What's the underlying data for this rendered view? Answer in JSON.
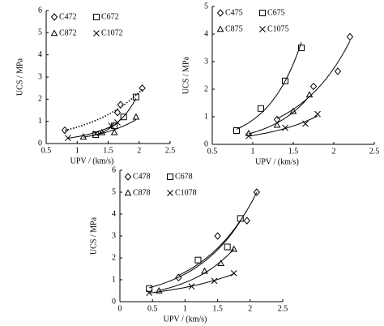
{
  "chart_data": [
    {
      "type": "scatter",
      "x_label": "UPV / (km/s)",
      "y_label": "UCS / MPa",
      "xlim": [
        0.5,
        2.5
      ],
      "xticks": [
        0.5,
        1,
        1.5,
        2,
        2.5
      ],
      "ylim": [
        0,
        6
      ],
      "yticks": [
        0,
        1,
        2,
        3,
        4,
        5,
        6
      ],
      "trendline": "exponential",
      "series": [
        {
          "name": "C472",
          "marker": "diamond",
          "color": "#000000",
          "trend_dash": "dotted",
          "x": [
            0.8,
            1.65,
            1.7,
            2.05
          ],
          "values": [
            0.6,
            1.4,
            1.75,
            2.5
          ]
        },
        {
          "name": "C672",
          "marker": "square",
          "color": "#000000",
          "trend_dash": "solid",
          "x": [
            1.3,
            1.6,
            1.75,
            1.95
          ],
          "values": [
            0.4,
            0.8,
            1.2,
            2.1
          ]
        },
        {
          "name": "C872",
          "marker": "triangle",
          "color": "#000000",
          "trend_dash": "solid",
          "x": [
            1.1,
            1.4,
            1.6,
            1.95
          ],
          "values": [
            0.3,
            0.5,
            0.5,
            1.2
          ]
        },
        {
          "name": "C1072",
          "marker": "x",
          "color": "#000000",
          "trend_dash": "solid",
          "x": [
            0.85,
            1.3,
            1.55,
            1.65
          ],
          "values": [
            0.25,
            0.45,
            0.8,
            0.95
          ]
        }
      ]
    },
    {
      "type": "scatter",
      "x_label": "UPV / (km/s)",
      "y_label": "UCS / MPa",
      "xlim": [
        0.5,
        2.5
      ],
      "xticks": [
        0.5,
        1,
        1.5,
        2,
        2.5
      ],
      "ylim": [
        0,
        5
      ],
      "yticks": [
        0,
        1,
        2,
        3,
        4,
        5
      ],
      "trendline": "exponential",
      "series": [
        {
          "name": "C475",
          "marker": "diamond",
          "color": "#000000",
          "trend_dash": "solid",
          "x": [
            1.3,
            1.75,
            2.05,
            2.2
          ],
          "values": [
            0.9,
            2.1,
            2.65,
            3.9
          ]
        },
        {
          "name": "C675",
          "marker": "square",
          "color": "#000000",
          "trend_dash": "solid",
          "x": [
            0.8,
            1.1,
            1.4,
            1.6
          ],
          "values": [
            0.5,
            1.3,
            2.3,
            3.5
          ]
        },
        {
          "name": "C875",
          "marker": "triangle",
          "color": "#000000",
          "trend_dash": "solid",
          "x": [
            0.95,
            1.3,
            1.5,
            1.7
          ],
          "values": [
            0.4,
            0.7,
            1.2,
            1.8
          ]
        },
        {
          "name": "C1075",
          "marker": "x",
          "color": "#000000",
          "trend_dash": "solid",
          "x": [
            0.95,
            1.4,
            1.65,
            1.8
          ],
          "values": [
            0.3,
            0.6,
            0.75,
            1.1
          ]
        }
      ]
    },
    {
      "type": "scatter",
      "x_label": "UPV / (km/s)",
      "y_label": "UCS / MPa",
      "xlim": [
        0,
        2.5
      ],
      "xticks": [
        0,
        0.5,
        1,
        1.5,
        2,
        2.5
      ],
      "ylim": [
        0,
        6
      ],
      "yticks": [
        0,
        1,
        2,
        3,
        4,
        5,
        6
      ],
      "trendline": "exponential",
      "series": [
        {
          "name": "C478",
          "marker": "diamond",
          "color": "#000000",
          "trend_dash": "solid",
          "x": [
            0.9,
            1.5,
            1.95,
            2.1
          ],
          "values": [
            1.1,
            3.0,
            3.7,
            5.0
          ]
        },
        {
          "name": "C678",
          "marker": "square",
          "color": "#000000",
          "trend_dash": "solid",
          "x": [
            0.45,
            1.2,
            1.65,
            1.85
          ],
          "values": [
            0.6,
            1.9,
            2.5,
            3.8
          ]
        },
        {
          "name": "C878",
          "marker": "triangle",
          "color": "#000000",
          "trend_dash": "solid",
          "x": [
            0.6,
            1.3,
            1.55,
            1.75
          ],
          "values": [
            0.5,
            1.4,
            1.75,
            2.4
          ]
        },
        {
          "name": "C1078",
          "marker": "x",
          "color": "#000000",
          "trend_dash": "solid",
          "x": [
            0.45,
            1.1,
            1.45,
            1.75
          ],
          "values": [
            0.4,
            0.7,
            0.95,
            1.3
          ]
        }
      ]
    }
  ]
}
